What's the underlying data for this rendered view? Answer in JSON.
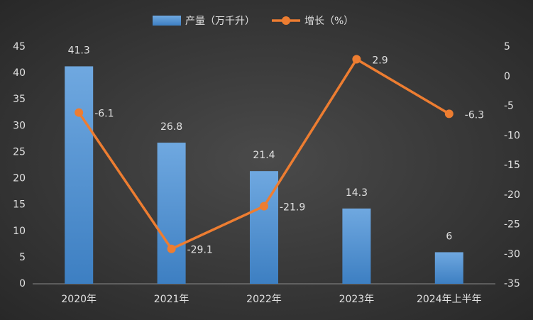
{
  "chart_data": {
    "type": "combo",
    "categories": [
      "2020年",
      "2021年",
      "2022年",
      "2023年",
      "2024年上半年"
    ],
    "series": [
      {
        "name": "产量（万千升）",
        "type": "bar",
        "color": "#5b9bd5",
        "values": [
          41.3,
          26.8,
          21.4,
          14.3,
          6
        ]
      },
      {
        "name": "增长（%）",
        "type": "line",
        "axis": "y2",
        "color": "#ed7d31",
        "values": [
          -6.1,
          -29.1,
          -21.9,
          2.9,
          -6.3
        ]
      }
    ],
    "ylim": [
      0,
      45
    ],
    "yticks": [
      0,
      5,
      10,
      15,
      20,
      25,
      30,
      35,
      40,
      45
    ],
    "y2lim": [
      -35,
      5
    ],
    "y2ticks": [
      -35,
      -30,
      -25,
      -20,
      -15,
      -10,
      -5,
      0,
      5
    ],
    "grid": false,
    "legend": "top"
  }
}
